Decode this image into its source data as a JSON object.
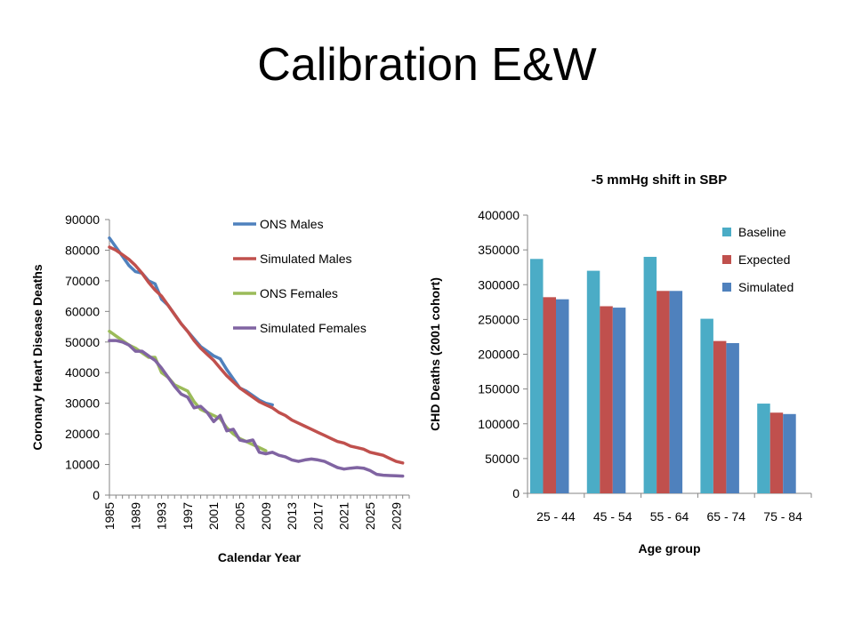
{
  "slide": {
    "title": "Calibration E&W"
  },
  "chart_data": [
    {
      "type": "line",
      "title": "",
      "xlabel": "Calendar Year",
      "ylabel": "Coronary Heart Disease Deaths",
      "ylim": [
        0,
        90000
      ],
      "yticks": [
        0,
        10000,
        20000,
        30000,
        40000,
        50000,
        60000,
        70000,
        80000,
        90000
      ],
      "xlim": [
        1985,
        2031
      ],
      "xtick_labels": [
        "1985",
        "1989",
        "1993",
        "1997",
        "2001",
        "2005",
        "2009",
        "2013",
        "2017",
        "2021",
        "2025",
        "2029"
      ],
      "legend_position": "top-right",
      "grid": false,
      "series": [
        {
          "name": "ONS Males",
          "color": "#4F81BD",
          "x": [
            1985,
            1986,
            1987,
            1988,
            1989,
            1990,
            1991,
            1992,
            1993,
            1994,
            1995,
            1996,
            1997,
            1998,
            1999,
            2000,
            2001,
            2002,
            2003,
            2004,
            2005,
            2006,
            2007,
            2008,
            2009,
            2010
          ],
          "values": [
            84000,
            81000,
            78000,
            75000,
            73000,
            72500,
            70000,
            69000,
            64000,
            62000,
            59000,
            56000,
            53500,
            51000,
            48500,
            47000,
            45500,
            44500,
            41000,
            38000,
            35000,
            34000,
            32500,
            31000,
            30000,
            29500
          ]
        },
        {
          "name": "Simulated Males",
          "color": "#C0504D",
          "x": [
            1985,
            1986,
            1987,
            1988,
            1989,
            1990,
            1991,
            1992,
            1993,
            1994,
            1995,
            1996,
            1997,
            1998,
            1999,
            2000,
            2001,
            2002,
            2003,
            2004,
            2005,
            2006,
            2007,
            2008,
            2009,
            2010,
            2011,
            2012,
            2013,
            2014,
            2015,
            2016,
            2017,
            2018,
            2019,
            2020,
            2021,
            2022,
            2023,
            2024,
            2025,
            2026,
            2027,
            2028,
            2029,
            2030
          ],
          "values": [
            81000,
            80000,
            78500,
            77000,
            75000,
            72500,
            69500,
            67000,
            65000,
            62000,
            59000,
            56000,
            53500,
            50500,
            48000,
            46000,
            44000,
            41500,
            39000,
            37000,
            35000,
            33500,
            32000,
            30500,
            29500,
            28500,
            27000,
            26000,
            24500,
            23500,
            22500,
            21500,
            20500,
            19500,
            18500,
            17500,
            17000,
            16000,
            15500,
            15000,
            14000,
            13500,
            13000,
            12000,
            11000,
            10500
          ]
        },
        {
          "name": "ONS Females",
          "color": "#9BBB59",
          "x": [
            1985,
            1986,
            1987,
            1988,
            1989,
            1990,
            1991,
            1992,
            1993,
            1994,
            1995,
            1996,
            1997,
            1998,
            1999,
            2000,
            2001,
            2002,
            2003,
            2004,
            2005,
            2006,
            2007,
            2008,
            2009
          ],
          "values": [
            53500,
            52000,
            50500,
            49000,
            48000,
            46500,
            45000,
            45000,
            40000,
            38500,
            36000,
            35000,
            34000,
            30500,
            28000,
            27000,
            26000,
            25000,
            22000,
            20000,
            18500,
            17500,
            16500,
            15500,
            14500
          ]
        },
        {
          "name": "Simulated Females",
          "color": "#8064A2",
          "x": [
            1985,
            1986,
            1987,
            1988,
            1989,
            1990,
            1991,
            1992,
            1993,
            1994,
            1995,
            1996,
            1997,
            1998,
            1999,
            2000,
            2001,
            2002,
            2003,
            2004,
            2005,
            2006,
            2007,
            2008,
            2009,
            2010,
            2011,
            2012,
            2013,
            2014,
            2015,
            2016,
            2017,
            2018,
            2019,
            2020,
            2021,
            2022,
            2023,
            2024,
            2025,
            2026,
            2027,
            2028,
            2029,
            2030
          ],
          "values": [
            50500,
            50500,
            50000,
            49000,
            47000,
            47000,
            45500,
            44000,
            41500,
            38500,
            35500,
            33000,
            32000,
            28500,
            29000,
            27000,
            24000,
            26000,
            21000,
            21500,
            18000,
            17500,
            18000,
            14000,
            13500,
            14000,
            13000,
            12500,
            11500,
            11000,
            11500,
            11800,
            11500,
            11000,
            10000,
            9000,
            8500,
            8800,
            9000,
            8800,
            8000,
            6800,
            6500,
            6400,
            6300,
            6200
          ]
        }
      ]
    },
    {
      "type": "bar",
      "title": "-5 mmHg shift in SBP",
      "xlabel": "Age group",
      "ylabel": "CHD Deaths (2001 cohort)",
      "ylim": [
        0,
        400000
      ],
      "yticks": [
        0,
        50000,
        100000,
        150000,
        200000,
        250000,
        300000,
        350000,
        400000
      ],
      "categories": [
        "25 - 44",
        "45 - 54",
        "55 - 64",
        "65 - 74",
        "75 - 84"
      ],
      "legend_position": "top-right",
      "grid": false,
      "series": [
        {
          "name": "Baseline",
          "color": "#4BACC6",
          "values": [
            337000,
            320000,
            340000,
            251000,
            129000
          ]
        },
        {
          "name": "Expected",
          "color": "#C0504D",
          "values": [
            282000,
            269000,
            291000,
            219000,
            116000
          ]
        },
        {
          "name": "Simulated",
          "color": "#4F81BD",
          "values": [
            279000,
            267000,
            291000,
            216000,
            114000
          ]
        }
      ]
    }
  ]
}
